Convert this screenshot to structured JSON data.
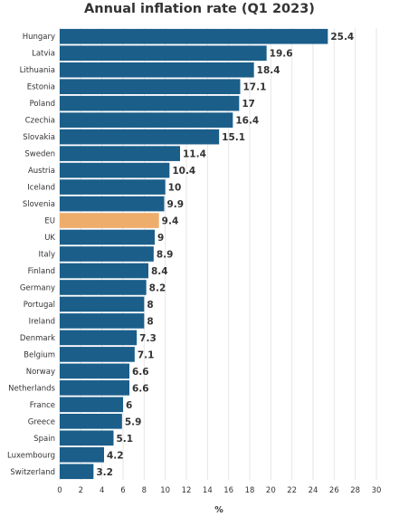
{
  "chart_data": {
    "type": "bar",
    "orientation": "horizontal",
    "title": "Annual inflation rate (Q1 2023)",
    "xlabel": "%",
    "ylabel": "",
    "xlim": [
      0,
      30
    ],
    "ticks": [
      "0",
      "2",
      "4",
      "6",
      "8",
      "10",
      "12",
      "14",
      "16",
      "18",
      "20",
      "22",
      "24",
      "26",
      "28",
      "30"
    ],
    "grid": true,
    "colors": {
      "bar": "#1b5e8a",
      "highlight": "#efad6b"
    },
    "highlight_category": "EU",
    "categories": [
      "Hungary",
      "Latvia",
      "Lithuania",
      "Estonia",
      "Poland",
      "Czechia",
      "Slovakia",
      "Sweden",
      "Austria",
      "Iceland",
      "Slovenia",
      "EU",
      "UK",
      "Italy",
      "Finland",
      "Germany",
      "Portugal",
      "Ireland",
      "Denmark",
      "Belgium",
      "Norway",
      "Netherlands",
      "France",
      "Greece",
      "Spain",
      "Luxembourg",
      "Switzerland"
    ],
    "values": [
      25.4,
      19.6,
      18.4,
      17.1,
      17,
      16.4,
      15.1,
      11.4,
      10.4,
      10,
      9.9,
      9.4,
      9,
      8.9,
      8.4,
      8.2,
      8,
      8,
      7.3,
      7.1,
      6.6,
      6.6,
      6,
      5.9,
      5.1,
      4.2,
      3.2
    ],
    "value_labels": [
      "25.4",
      "19.6",
      "18.4",
      "17.1",
      "17",
      "16.4",
      "15.1",
      "11.4",
      "10.4",
      "10",
      "9.9",
      "9.4",
      "9",
      "8.9",
      "8.4",
      "8.2",
      "8",
      "8",
      "7.3",
      "7.1",
      "6.6",
      "6.6",
      "6",
      "5.9",
      "5.1",
      "4.2",
      "3.2"
    ]
  }
}
